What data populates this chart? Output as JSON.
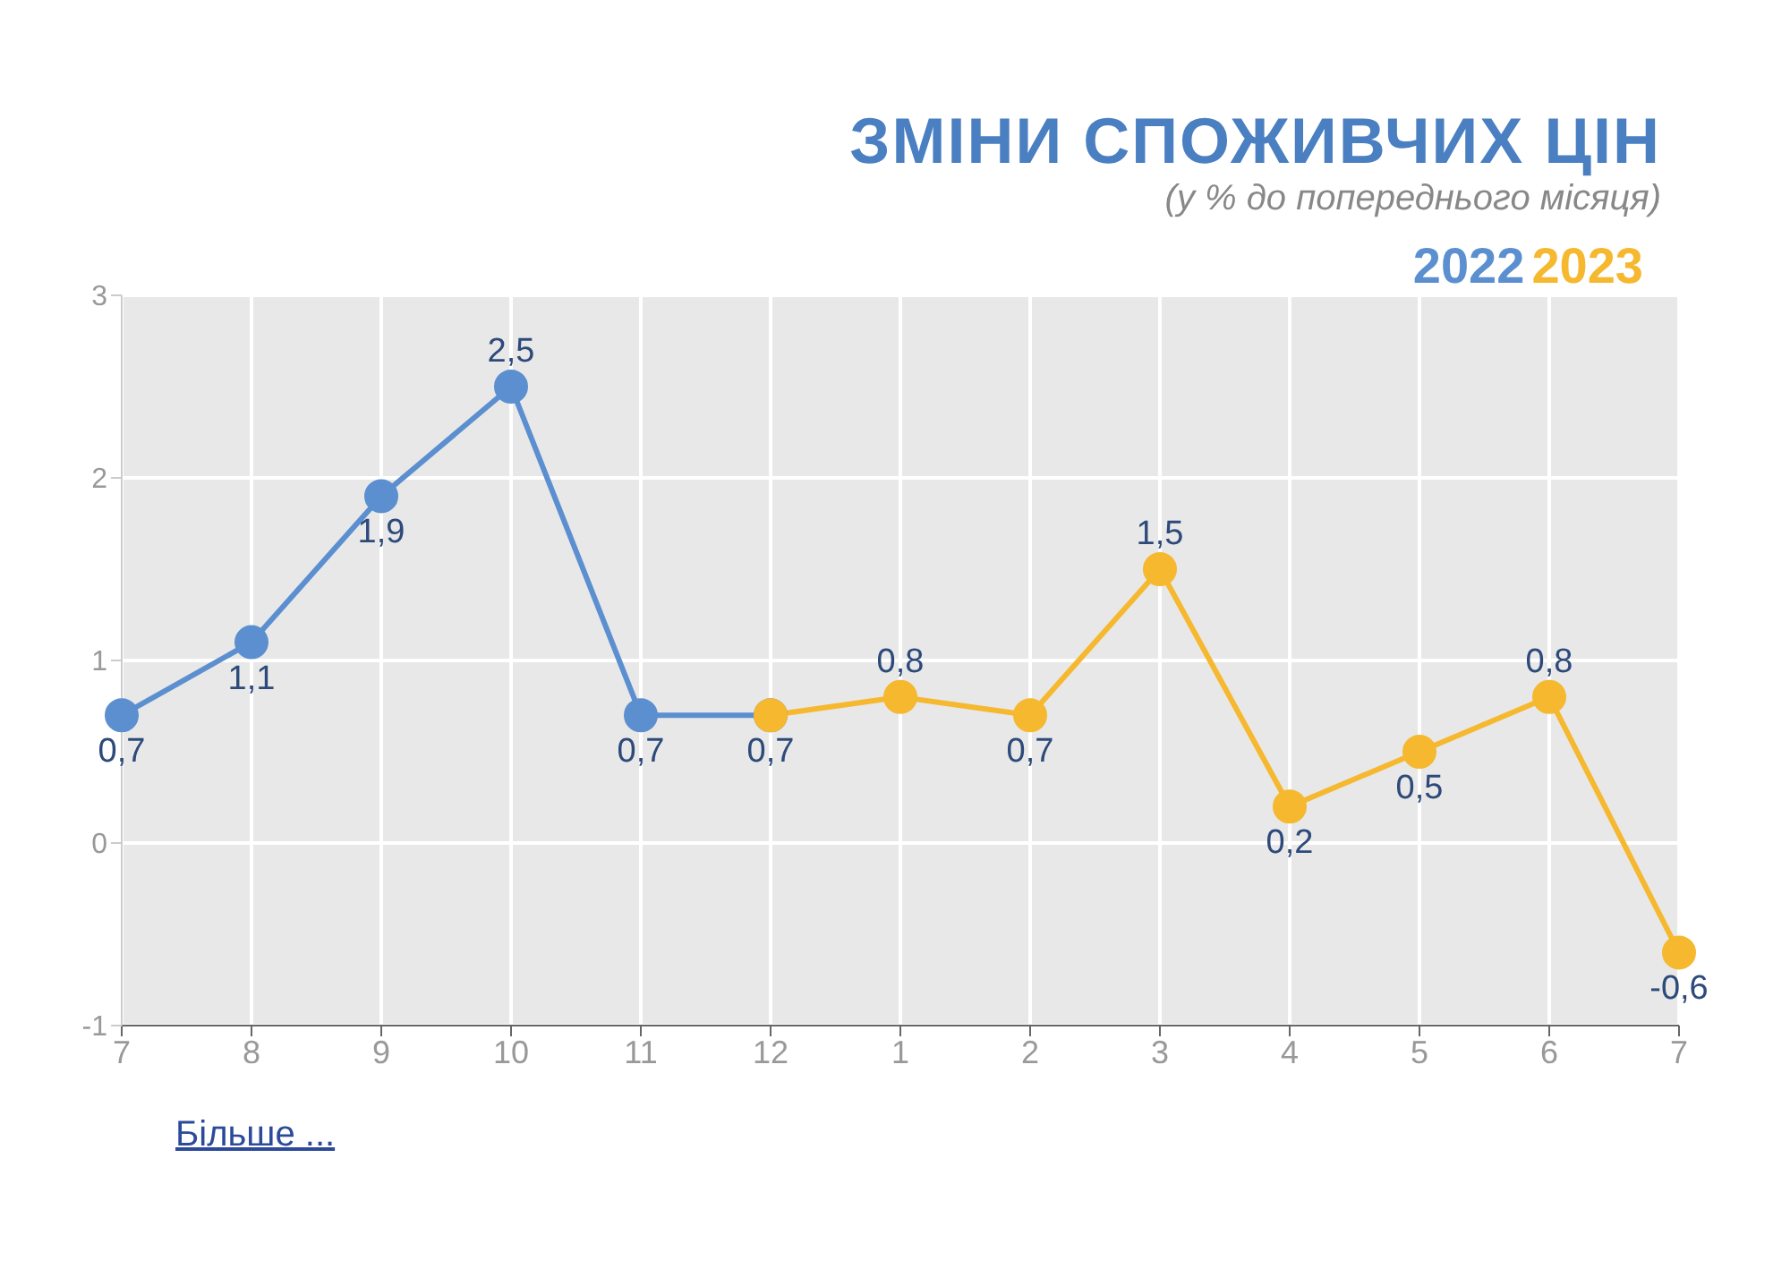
{
  "chart_data": {
    "type": "line",
    "title": "ЗМІНИ СПОЖИВЧИХ ЦІН",
    "subtitle": "(у % до попереднього місяця)",
    "categories": [
      "7",
      "8",
      "9",
      "10",
      "11",
      "12",
      "1",
      "2",
      "3",
      "4",
      "5",
      "6",
      "7"
    ],
    "series": [
      {
        "name": "2022",
        "color": "#5b8fcf",
        "values": [
          0.7,
          1.1,
          1.9,
          2.5,
          0.7,
          0.7,
          null,
          null,
          null,
          null,
          null,
          null,
          null
        ],
        "value_labels": [
          "0,7",
          "1,1",
          "1,9",
          "2,5",
          "0,7",
          "0,7",
          null,
          null,
          null,
          null,
          null,
          null,
          null
        ]
      },
      {
        "name": "2023",
        "color": "#f5b82e",
        "values": [
          null,
          null,
          null,
          null,
          null,
          0.7,
          0.8,
          0.7,
          1.5,
          0.2,
          0.5,
          0.8,
          -0.6
        ],
        "value_labels": [
          null,
          null,
          null,
          null,
          null,
          null,
          "0,8",
          "0,7",
          "1,5",
          "0,2",
          "0,5",
          "0,8",
          "-0,6"
        ]
      }
    ],
    "ylim": [
      -1,
      3
    ],
    "yticks": [
      -1,
      0,
      1,
      2,
      3
    ],
    "grid": true,
    "legend": "top right",
    "marker": "circle",
    "line_style": "solid",
    "annotations": [
      "Більше ..."
    ]
  }
}
